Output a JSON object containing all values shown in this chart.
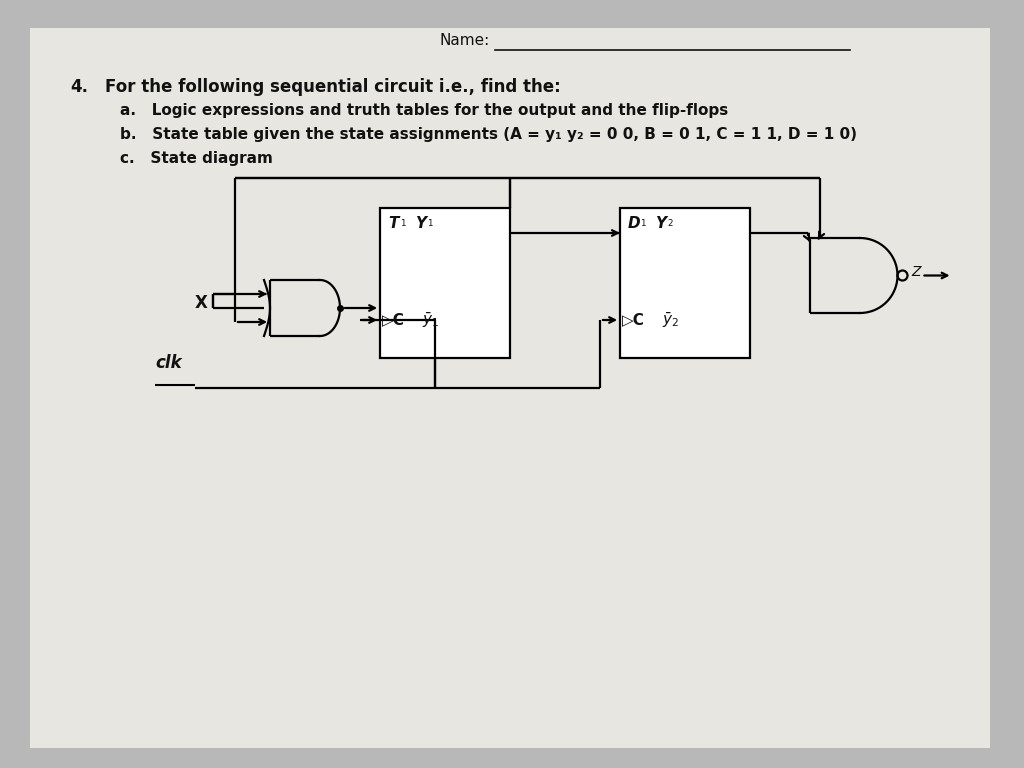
{
  "bg_color": "#b8b8b8",
  "paper_color": "#e8e6e0",
  "text_color": "#111111",
  "name_label": "Name:",
  "q_num": "4.",
  "q_text": "For the following sequential circuit i.e., find the:",
  "item_a": "a.   Logic expressions and truth tables for the output and the flip-flops",
  "item_b": "b.   State table given the state assignments (A = y₁ y₂ = 0 0, B = 0 1, C = 1 1, D = 1 0)",
  "item_c": "c.   State diagram",
  "lw": 1.6
}
